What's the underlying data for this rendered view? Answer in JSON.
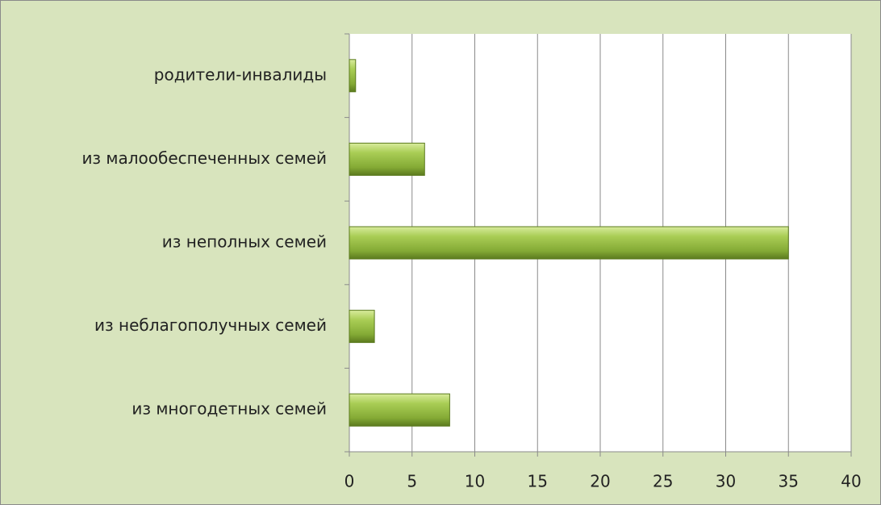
{
  "chart_data": {
    "type": "bar",
    "orientation": "horizontal",
    "categories": [
      "родители-инвалиды",
      "из малообеспеченных семей",
      "из неполных семей",
      "из неблагополучных семей",
      "из многодетных семей"
    ],
    "values": [
      0.5,
      6,
      35,
      2,
      8
    ],
    "color": "#8cb43c",
    "xlim": [
      0,
      40
    ],
    "xticks": [
      0,
      5,
      10,
      15,
      20,
      25,
      30,
      35,
      40
    ],
    "grid": true
  }
}
